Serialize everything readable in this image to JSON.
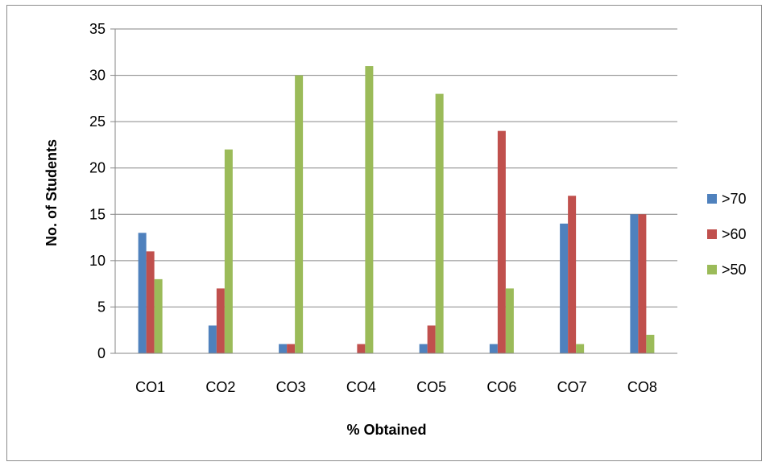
{
  "chart_data": {
    "type": "bar",
    "categories": [
      "CO1",
      "CO2",
      "CO3",
      "CO4",
      "CO5",
      "CO6",
      "CO7",
      "CO8"
    ],
    "series": [
      {
        "name": ">70",
        "color": "#4f81bd",
        "values": [
          13,
          3,
          1,
          0,
          1,
          1,
          14,
          15
        ]
      },
      {
        "name": ">60",
        "color": "#c0504d",
        "values": [
          11,
          7,
          1,
          1,
          3,
          24,
          17,
          15
        ]
      },
      {
        "name": ">50",
        "color": "#9bbb59",
        "values": [
          8,
          22,
          30,
          31,
          28,
          7,
          1,
          2
        ]
      }
    ],
    "xlabel": "% Obtained",
    "ylabel": "No. of  Students",
    "ylim": [
      0,
      35
    ],
    "yticks": [
      0,
      5,
      10,
      15,
      20,
      25,
      30,
      35
    ],
    "grid": true,
    "legend_position": "right",
    "gridline_color": "#868686"
  }
}
